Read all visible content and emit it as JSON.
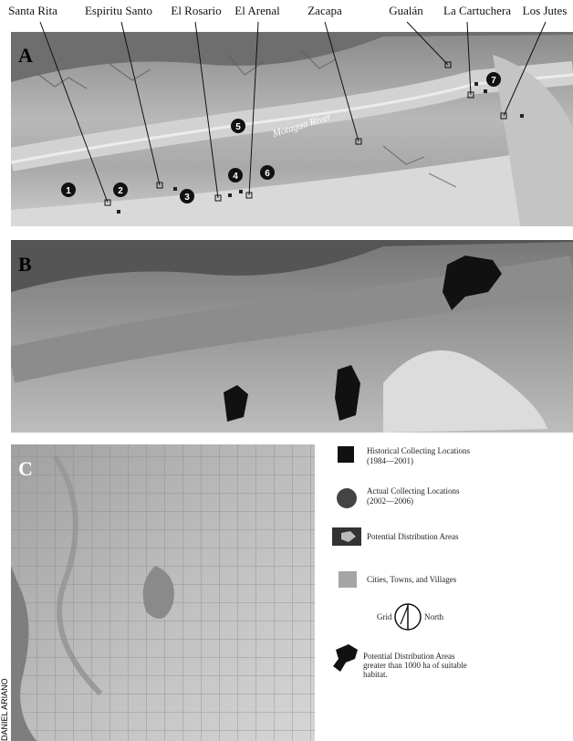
{
  "places": [
    "Santa Rita",
    "Espiritu Santo",
    "El Rosario",
    "El Arenal",
    "Zacapa",
    "Gualán",
    "La Cartuchera",
    "Los Jutes"
  ],
  "panels": [
    "A",
    "B",
    "C"
  ],
  "markers": [
    "1",
    "2",
    "3",
    "4",
    "5",
    "6",
    "7"
  ],
  "river": "Motagua River",
  "legend": [
    {
      "lines": [
        "Historical Collecting Locations",
        "(1984—2001)"
      ]
    },
    {
      "lines": [
        "Actual Collecting Locations",
        "(2002—2006)"
      ]
    },
    {
      "lines": [
        "Potential Distribution Areas"
      ]
    },
    {
      "lines": [
        "Cities, Towns, and Villages"
      ]
    },
    {
      "lines": [
        "Potential Distribution Areas",
        "greater than 1000 ha of suitable",
        "habitat."
      ]
    }
  ],
  "grid": "Grid",
  "north": "North",
  "credit": "DANIEL ARIANO"
}
